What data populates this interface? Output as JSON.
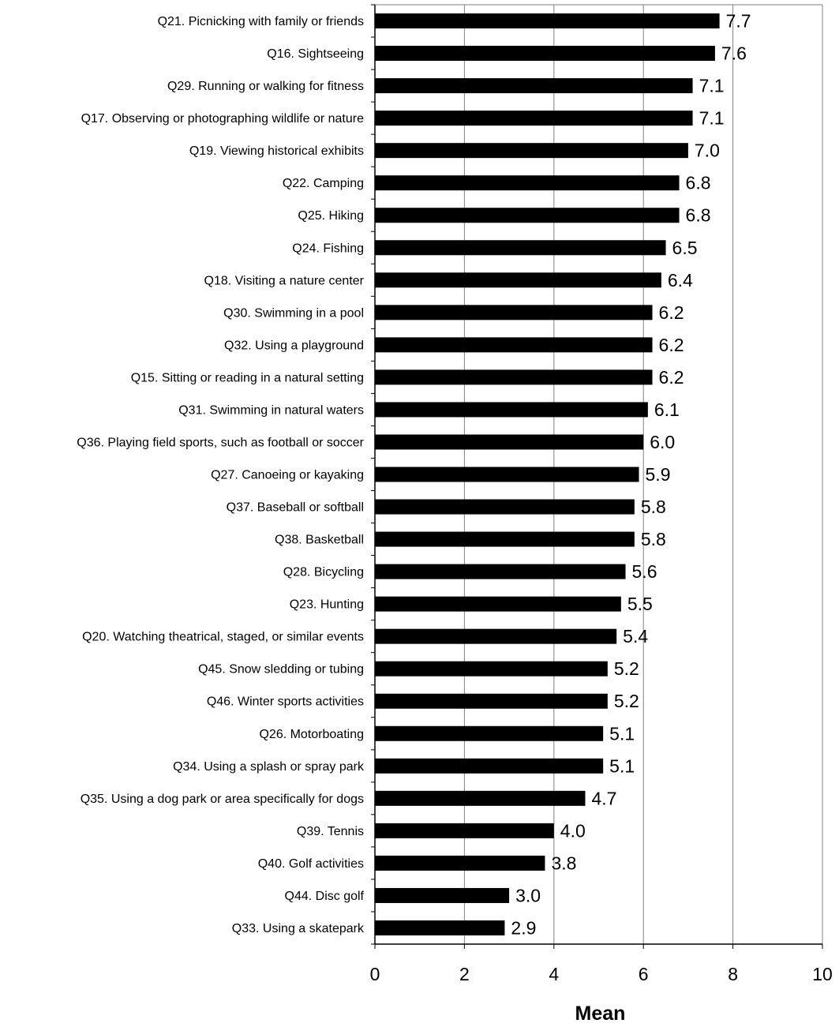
{
  "chart_data": {
    "type": "bar",
    "orientation": "horizontal",
    "categories": [
      "Q21. Picnicking with family or friends",
      "Q16. Sightseeing",
      "Q29. Running or walking for fitness",
      "Q17. Observing or photographing wildlife or nature",
      "Q19. Viewing historical exhibits",
      "Q22. Camping",
      "Q25. Hiking",
      "Q24. Fishing",
      "Q18. Visiting a nature center",
      "Q30. Swimming in a pool",
      "Q32. Using a playground",
      "Q15. Sitting or reading in a natural setting",
      "Q31. Swimming in natural waters",
      "Q36. Playing field sports, such as football or soccer",
      "Q27. Canoeing or kayaking",
      "Q37. Baseball or softball",
      "Q38. Basketball",
      "Q28. Bicycling",
      "Q23. Hunting",
      "Q20. Watching theatrical, staged, or similar events",
      "Q45. Snow sledding or tubing",
      "Q46. Winter sports activities",
      "Q26. Motorboating",
      "Q34. Using a splash or spray park",
      "Q35. Using a dog park or area specifically for dogs",
      "Q39. Tennis",
      "Q40. Golf activities",
      "Q44. Disc golf",
      "Q33. Using a skatepark"
    ],
    "values": [
      7.7,
      7.6,
      7.1,
      7.1,
      7.0,
      6.8,
      6.8,
      6.5,
      6.4,
      6.2,
      6.2,
      6.2,
      6.1,
      6.0,
      5.9,
      5.8,
      5.8,
      5.6,
      5.5,
      5.4,
      5.2,
      5.2,
      5.1,
      5.1,
      4.7,
      4.0,
      3.8,
      3.0,
      2.9
    ],
    "value_labels": [
      "7.7",
      "7.6",
      "7.1",
      "7.1",
      "7.0",
      "6.8",
      "6.8",
      "6.5",
      "6.4",
      "6.2",
      "6.2",
      "6.2",
      "6.1",
      "6.0",
      "5.9",
      "5.8",
      "5.8",
      "5.6",
      "5.5",
      "5.4",
      "5.2",
      "5.2",
      "5.1",
      "5.1",
      "4.7",
      "4.0",
      "3.8",
      "3.0",
      "2.9"
    ],
    "title": "",
    "xlabel": "Mean",
    "ylabel": "",
    "xlim": [
      0,
      10
    ],
    "xticks": [
      "0",
      "2",
      "4",
      "6",
      "8",
      "10"
    ],
    "grid": "vertical major gridlines",
    "legend": "none",
    "bar_color": "#000000",
    "grid_color": "#808080"
  }
}
